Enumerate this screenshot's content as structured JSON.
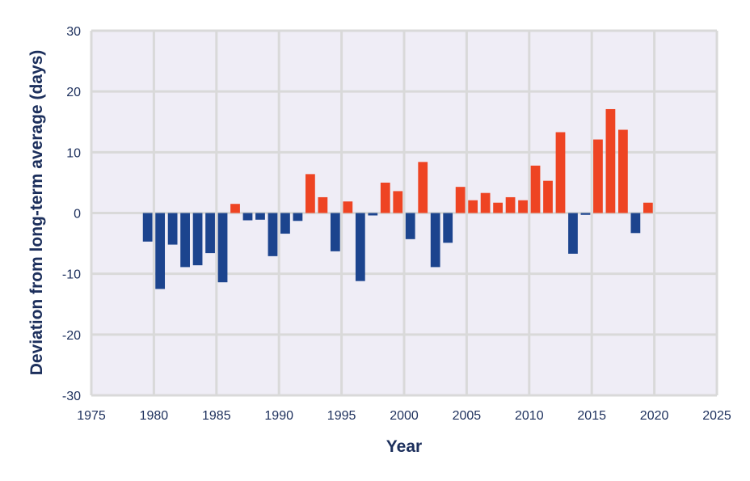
{
  "chart_data": {
    "type": "bar",
    "title": "",
    "xlabel": "Year",
    "ylabel": "Deviation from long-term average (days)",
    "xlim": [
      1975,
      2025
    ],
    "ylim": [
      -30,
      30
    ],
    "xticks": [
      1975,
      1980,
      1985,
      1990,
      1995,
      2000,
      2005,
      2010,
      2015,
      2020,
      2025
    ],
    "yticks": [
      -30,
      -20,
      -10,
      0,
      10,
      20,
      30
    ],
    "grid": true,
    "colors": {
      "positive": "#ee4423",
      "negative": "#1c448e",
      "background": "#efedf6",
      "grid": "#d9d9d9",
      "label": "#1c2f5c"
    },
    "x": [
      1979,
      1980,
      1981,
      1982,
      1983,
      1984,
      1985,
      1986,
      1987,
      1988,
      1989,
      1990,
      1991,
      1992,
      1993,
      1994,
      1995,
      1996,
      1997,
      1998,
      1999,
      2000,
      2001,
      2002,
      2003,
      2004,
      2005,
      2006,
      2007,
      2008,
      2009,
      2010,
      2011,
      2012,
      2013,
      2014,
      2015,
      2016,
      2017,
      2018,
      2019
    ],
    "values": [
      -4.7,
      -12.5,
      -5.2,
      -8.9,
      -8.6,
      -6.6,
      -11.4,
      1.5,
      -1.2,
      -1.1,
      -7.1,
      -3.4,
      -1.3,
      6.4,
      2.6,
      -6.3,
      1.9,
      -11.2,
      -0.4,
      5.0,
      3.6,
      -4.3,
      8.4,
      -8.9,
      -4.9,
      4.3,
      2.1,
      3.3,
      1.7,
      2.6,
      2.1,
      7.8,
      5.3,
      13.3,
      -6.7,
      -0.3,
      12.1,
      17.1,
      13.7,
      -3.3,
      1.7
    ]
  }
}
